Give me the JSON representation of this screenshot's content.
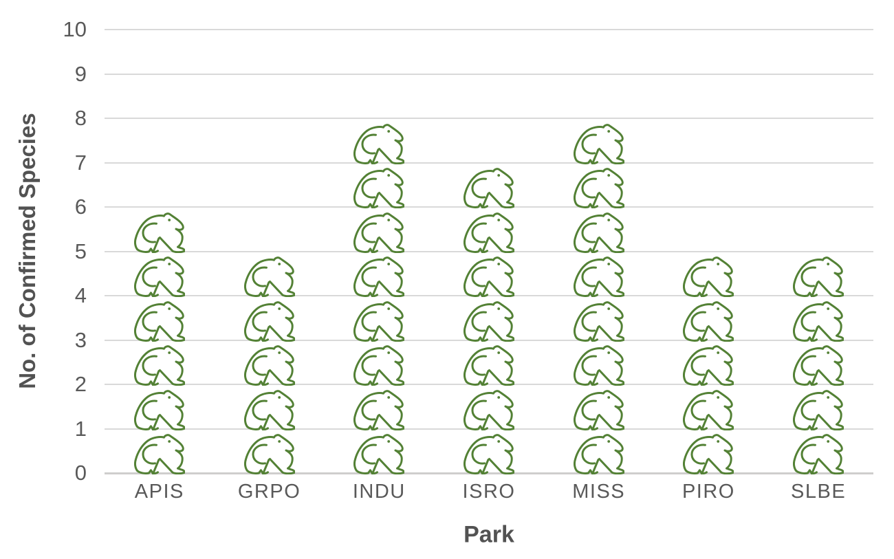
{
  "chart_data": {
    "type": "bar",
    "subtype": "pictograph",
    "pictogram_icon": "frog-icon",
    "title": "",
    "xlabel": "Park",
    "ylabel": "No. of Confirmed Species",
    "categories": [
      "APIS",
      "GRPO",
      "INDU",
      "ISRO",
      "MISS",
      "PIRO",
      "SLBE"
    ],
    "values": [
      6,
      5,
      8,
      7,
      8,
      5,
      5
    ],
    "ylim": [
      0,
      10
    ],
    "yticks": [
      0,
      1,
      2,
      3,
      4,
      5,
      6,
      7,
      8,
      9,
      10
    ],
    "icon_unit": 1,
    "grid": "horizontal",
    "legend": "none"
  },
  "colors": {
    "frog_green": "#538135",
    "tick_text": "#595959",
    "title_text": "#525252",
    "gridline": "#d9d9d9",
    "axis_line": "#cfcecd",
    "background": "#ffffff"
  }
}
